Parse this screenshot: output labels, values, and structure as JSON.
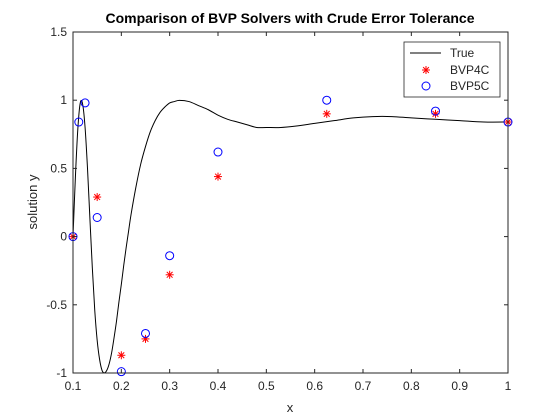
{
  "chart_data": {
    "type": "line",
    "title": "Comparison of BVP Solvers with Crude Error Tolerance",
    "xlabel": "x",
    "ylabel": "solution y",
    "xlim": [
      0.1,
      1.0
    ],
    "ylim": [
      -1.0,
      1.5
    ],
    "xticks": [
      0.1,
      0.2,
      0.3,
      0.4,
      0.5,
      0.6,
      0.7,
      0.8,
      0.9,
      1.0
    ],
    "xtick_labels": [
      "0.1",
      "0.2",
      "0.3",
      "0.4",
      "0.5",
      "0.6",
      "0.7",
      "0.8",
      "0.9",
      "1"
    ],
    "yticks": [
      -1.0,
      -0.5,
      0.0,
      0.5,
      1.0,
      1.5
    ],
    "ytick_labels": [
      "-1",
      "-0.5",
      "0",
      "0.5",
      "1",
      "1.5"
    ],
    "grid": false,
    "legend_position": "top-right",
    "series": [
      {
        "name": "True",
        "style": "line",
        "color": "#000000",
        "x": [
          0.1,
          0.105,
          0.11,
          0.115,
          0.12,
          0.125,
          0.13,
          0.135,
          0.14,
          0.145,
          0.15,
          0.155,
          0.16,
          0.165,
          0.17,
          0.175,
          0.18,
          0.185,
          0.19,
          0.195,
          0.2,
          0.205,
          0.21,
          0.215,
          0.22,
          0.23,
          0.24,
          0.25,
          0.26,
          0.27,
          0.28,
          0.29,
          0.3,
          0.31,
          0.32,
          0.34,
          0.36,
          0.38,
          0.4,
          0.42,
          0.44,
          0.46,
          0.48,
          0.5,
          0.53,
          0.56,
          0.6,
          0.64,
          0.68,
          0.72,
          0.76,
          0.8,
          0.85,
          0.9,
          0.95,
          1.0
        ],
        "y": [
          0.0,
          0.44,
          0.79,
          0.98,
          0.97,
          0.8,
          0.5,
          0.13,
          -0.23,
          -0.54,
          -0.76,
          -0.9,
          -0.98,
          -0.999,
          -0.98,
          -0.93,
          -0.85,
          -0.74,
          -0.62,
          -0.48,
          -0.35,
          -0.21,
          -0.08,
          0.04,
          0.16,
          0.36,
          0.53,
          0.66,
          0.77,
          0.85,
          0.91,
          0.95,
          0.98,
          0.99,
          0.999,
          0.99,
          0.96,
          0.93,
          0.89,
          0.86,
          0.84,
          0.82,
          0.8,
          0.8,
          0.8,
          0.81,
          0.83,
          0.85,
          0.87,
          0.88,
          0.88,
          0.87,
          0.86,
          0.85,
          0.84,
          0.84
        ]
      },
      {
        "name": "BVP4C",
        "style": "marker",
        "marker": "asterisk",
        "color": "#ff0000",
        "x": [
          0.1,
          0.15,
          0.2,
          0.25,
          0.3,
          0.4,
          0.625,
          0.85,
          1.0
        ],
        "y": [
          0.0,
          0.29,
          -0.87,
          -0.75,
          -0.28,
          0.44,
          0.9,
          0.9,
          0.84
        ]
      },
      {
        "name": "BVP5C",
        "style": "marker",
        "marker": "circle",
        "color": "#0000ff",
        "x": [
          0.1,
          0.112,
          0.125,
          0.15,
          0.2,
          0.25,
          0.3,
          0.4,
          0.625,
          0.85,
          1.0
        ],
        "y": [
          0.0,
          0.84,
          0.98,
          0.14,
          -0.99,
          -0.71,
          -0.14,
          0.62,
          1.0,
          0.92,
          0.84
        ]
      }
    ]
  }
}
